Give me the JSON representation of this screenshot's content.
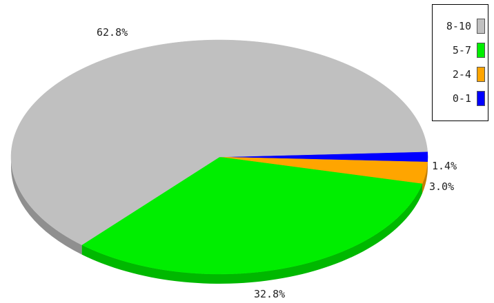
{
  "chart_data": {
    "type": "pie",
    "title": "",
    "slices": [
      {
        "label": "8-10",
        "value": 62.8,
        "value_label": "62.8%",
        "color": "#c0c0c0",
        "side": "#8f8f8f"
      },
      {
        "label": "5-7",
        "value": 32.8,
        "value_label": "32.8%",
        "color": "#00ee00",
        "side": "#00b800"
      },
      {
        "label": "2-4",
        "value": 3.0,
        "value_label": "3.0%",
        "color": "#ffa500",
        "side": "#c47f00"
      },
      {
        "label": "0-1",
        "value": 1.4,
        "value_label": "1.4%",
        "color": "#0000ff",
        "side": "#0000b0"
      }
    ],
    "legend": {
      "position": "top-right",
      "items": [
        "8-10",
        "5-7",
        "2-4",
        "0-1"
      ]
    },
    "style": "3d-tilted"
  }
}
